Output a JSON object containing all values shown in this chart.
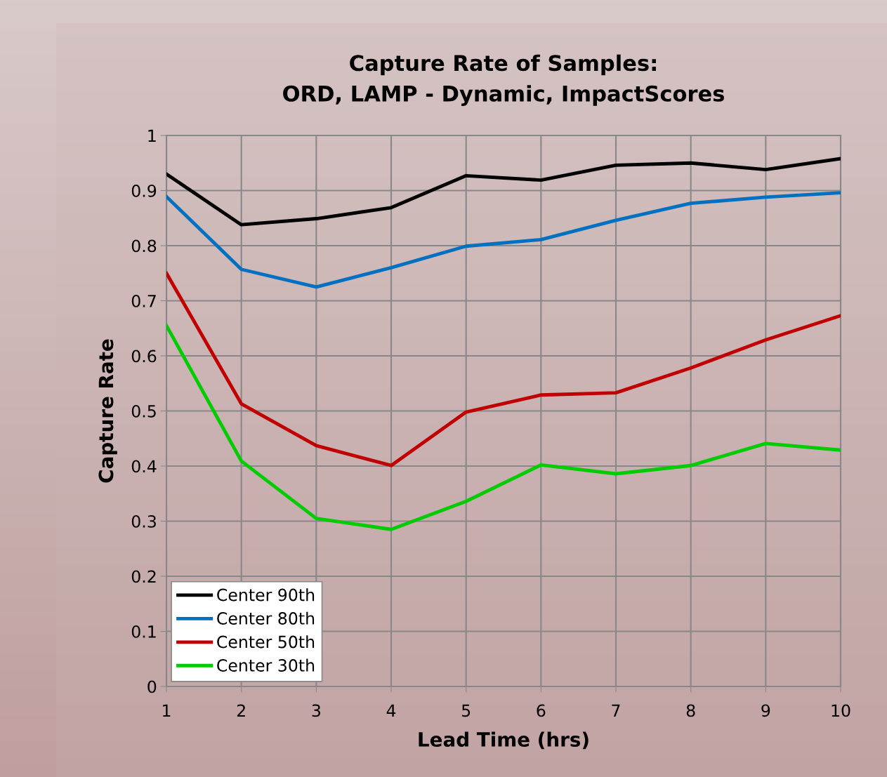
{
  "chart_data": {
    "type": "line",
    "title": "Capture Rate of Samples:\nORD, LAMP - Dynamic, ImpactScores",
    "xlabel": "Lead Time (hrs)",
    "ylabel": "Capture Rate",
    "x": [
      1,
      2,
      3,
      4,
      5,
      6,
      7,
      8,
      9,
      10
    ],
    "series": [
      {
        "name": "Center 90th",
        "color": "#000000",
        "values": [
          0.93,
          0.838,
          0.849,
          0.869,
          0.927,
          0.919,
          0.946,
          0.95,
          0.938,
          0.958
        ]
      },
      {
        "name": "Center 80th",
        "color": "#0070c0",
        "values": [
          0.889,
          0.757,
          0.725,
          0.76,
          0.799,
          0.811,
          0.846,
          0.877,
          0.888,
          0.896
        ]
      },
      {
        "name": "Center 50th",
        "color": "#c00000",
        "values": [
          0.75,
          0.513,
          0.437,
          0.401,
          0.498,
          0.529,
          0.533,
          0.578,
          0.629,
          0.673
        ]
      },
      {
        "name": "Center 30th",
        "color": "#00cc00",
        "values": [
          0.655,
          0.409,
          0.305,
          0.285,
          0.336,
          0.402,
          0.386,
          0.401,
          0.441,
          0.429
        ]
      }
    ],
    "xlim": [
      1,
      10
    ],
    "xticks": [
      1,
      2,
      3,
      4,
      5,
      6,
      7,
      8,
      9,
      10
    ],
    "ylim": [
      0,
      1
    ],
    "yticks": [
      0,
      0.1,
      0.2,
      0.3,
      0.4,
      0.5,
      0.6,
      0.7,
      0.8,
      0.9,
      1
    ],
    "grid": true,
    "legend": "bottom left",
    "marker": "none",
    "line_style": "solid"
  }
}
